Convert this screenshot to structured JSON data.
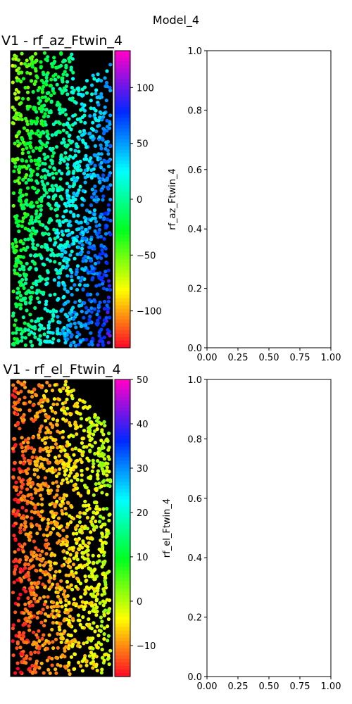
{
  "figure_title": "Model_4",
  "chart_data": [
    {
      "type": "scatter",
      "title": "V1 - rf_az_Ftwin_4",
      "background": "#000000",
      "colormap": "gist_rainbow",
      "colorbar": {
        "vmin": -133,
        "vmax": 133,
        "ticks": [
          -100,
          -50,
          0,
          50,
          100
        ],
        "tick_labels": [
          "−100",
          "−50",
          "0",
          "50",
          "100"
        ]
      },
      "point_description": "scatter of neurons colored by azimuth; values increase from left (green) to right/bottom (blue)",
      "gradient": {
        "left_top": -60,
        "right_bottom": 90
      },
      "seed": 11
    },
    {
      "type": "scatter",
      "title": "V1 - rf_el_Ftwin_4",
      "background": "#000000",
      "colormap": "gist_rainbow",
      "colorbar": {
        "vmin": -17,
        "vmax": 50,
        "ticks": [
          -10,
          0,
          10,
          20,
          30,
          40,
          50
        ],
        "tick_labels": [
          "−10",
          "0",
          "10",
          "20",
          "30",
          "40",
          "50"
        ]
      },
      "gradient": {
        "left": -15,
        "right": 2
      },
      "seed": 29
    },
    {
      "type": "line",
      "ylabel": "rf_az_Ftwin_4",
      "xlim": [
        0,
        1
      ],
      "ylim": [
        0,
        1
      ],
      "x_ticks": [
        "0.00",
        "0.25",
        "0.50",
        "0.75",
        "1.00"
      ],
      "y_ticks": [
        "0.0",
        "0.2",
        "0.4",
        "0.6",
        "0.8",
        "1.0"
      ],
      "series": []
    },
    {
      "type": "line",
      "ylabel": "rf_el_Ftwin_4",
      "xlim": [
        0,
        1
      ],
      "ylim": [
        0,
        1
      ],
      "x_ticks": [
        "0.00",
        "0.25",
        "0.50",
        "0.75",
        "1.00"
      ],
      "y_ticks": [
        "0.0",
        "0.2",
        "0.4",
        "0.6",
        "0.8",
        "1.0"
      ],
      "series": []
    }
  ]
}
